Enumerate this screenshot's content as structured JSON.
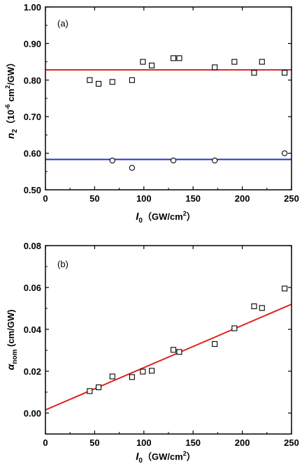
{
  "chart_data": [
    {
      "type": "scatter",
      "panel_label": "(a)",
      "xlim": [
        0,
        250
      ],
      "ylim": [
        0.5,
        1.0
      ],
      "xticks": [
        "0",
        "50",
        "100",
        "150",
        "200",
        "250"
      ],
      "yticks": [
        "0.50",
        "0.60",
        "0.70",
        "0.80",
        "0.90",
        "1.00"
      ],
      "xlabel": {
        "main": "I",
        "sub": "0",
        "unit": "（GW/cm",
        "sup": "2",
        "close": "）"
      },
      "ylabel": {
        "main": "n",
        "sub": "2",
        "unit": "（10",
        "sup1": "-6",
        "unit2": " cm",
        "sup2": "2",
        "unit3": "/GW）"
      },
      "series": [
        {
          "marker": "square",
          "x": [
            45,
            54,
            68,
            88,
            99,
            108,
            130,
            136,
            172,
            192,
            212,
            220,
            243
          ],
          "y": [
            0.8,
            0.79,
            0.795,
            0.8,
            0.85,
            0.84,
            0.86,
            0.86,
            0.835,
            0.85,
            0.82,
            0.85,
            0.82
          ]
        },
        {
          "marker": "circle",
          "x": [
            68,
            88,
            130,
            172,
            243
          ],
          "y": [
            0.58,
            0.56,
            0.58,
            0.58,
            0.6
          ]
        }
      ],
      "lines": [
        {
          "color": "#e0201c",
          "y": 0.828
        },
        {
          "color": "#2233cc",
          "y": 0.583
        }
      ]
    },
    {
      "type": "scatter",
      "panel_label": "(b)",
      "xlim": [
        0,
        250
      ],
      "ylim": [
        -0.01,
        0.08
      ],
      "xticks": [
        "0",
        "50",
        "100",
        "150",
        "200",
        "250"
      ],
      "yticks": [
        "0.00",
        "0.02",
        "0.04",
        "0.06",
        "0.08"
      ],
      "xlabel": {
        "main": "I",
        "sub": "0",
        "unit": "（GW/cm",
        "sup": "2",
        "close": "）"
      },
      "ylabel": {
        "main": "α",
        "sub": "nom",
        "unit": " (cm/GW)"
      },
      "series": [
        {
          "marker": "square",
          "x": [
            45,
            54,
            68,
            88,
            99,
            108,
            130,
            136,
            172,
            192,
            212,
            220,
            243
          ],
          "y": [
            0.0105,
            0.0123,
            0.0175,
            0.0172,
            0.0198,
            0.0202,
            0.0302,
            0.0292,
            0.033,
            0.0405,
            0.051,
            0.0502,
            0.0595
          ]
        }
      ],
      "lines": [
        {
          "color": "#e0201c",
          "x": [
            0,
            250
          ],
          "y": [
            0.0015,
            0.052
          ]
        }
      ]
    }
  ]
}
